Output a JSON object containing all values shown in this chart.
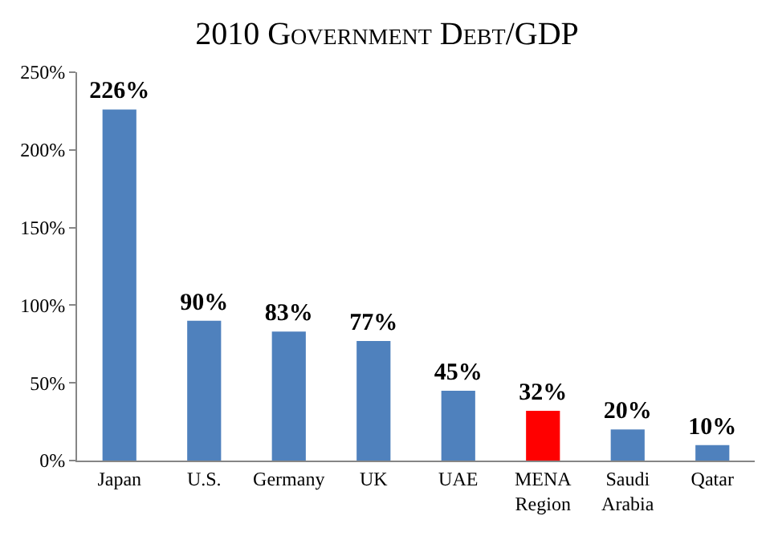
{
  "chart_data": {
    "type": "bar",
    "title": "2010 Government Debt/GDP",
    "categories": [
      "Japan",
      "U.S.",
      "Germany",
      "UK",
      "UAE",
      "MENA Region",
      "Saudi Arabia",
      "Qatar"
    ],
    "values": [
      226,
      90,
      83,
      77,
      45,
      32,
      20,
      10
    ],
    "colors": [
      "#4f81bd",
      "#4f81bd",
      "#4f81bd",
      "#4f81bd",
      "#4f81bd",
      "#ff0000",
      "#4f81bd",
      "#4f81bd"
    ],
    "value_labels": [
      "226%",
      "90%",
      "83%",
      "77%",
      "45%",
      "32%",
      "20%",
      "10%"
    ],
    "ylim": [
      0,
      250
    ],
    "yticks": [
      {
        "value": 0,
        "label": "0%"
      },
      {
        "value": 50,
        "label": "50%"
      },
      {
        "value": 100,
        "label": "100%"
      },
      {
        "value": 150,
        "label": "150%"
      },
      {
        "value": 200,
        "label": "200%"
      },
      {
        "value": 250,
        "label": "250%"
      }
    ]
  }
}
